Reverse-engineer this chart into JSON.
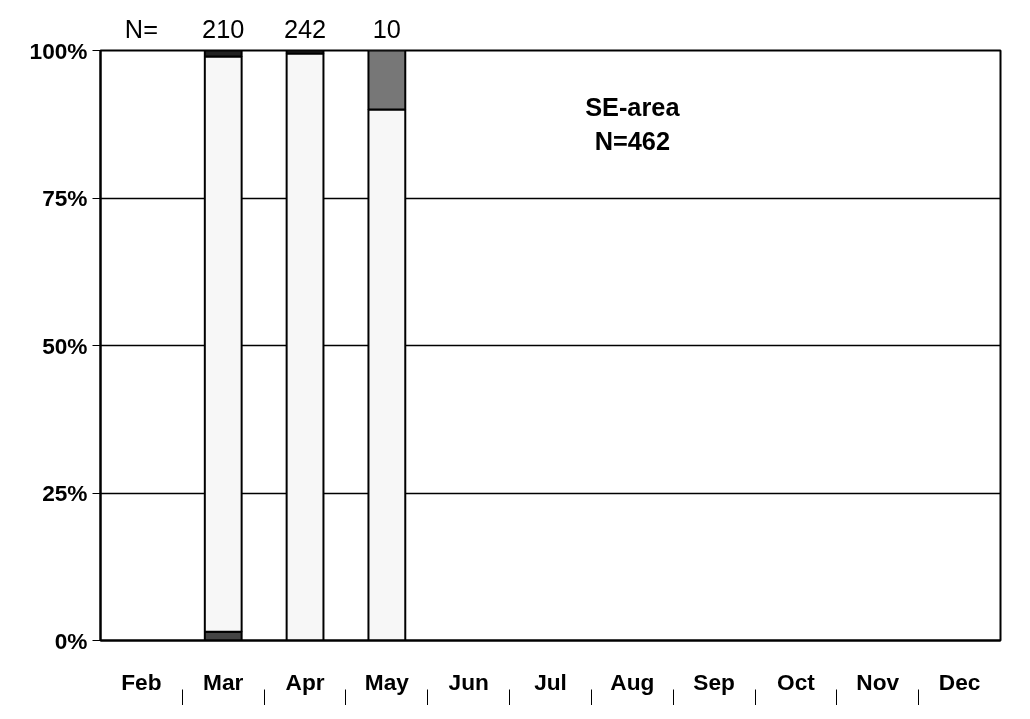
{
  "chart_data": {
    "type": "bar",
    "stacked": true,
    "categories": [
      "Feb",
      "Mar",
      "Apr",
      "May",
      "Jun",
      "Jul",
      "Aug",
      "Sep",
      "Oct",
      "Nov",
      "Dec"
    ],
    "series": [
      {
        "color": "#444444",
        "values": [
          0,
          1.5,
          0,
          0,
          0,
          0,
          0,
          0,
          0,
          0,
          0
        ]
      },
      {
        "color": "#f7f7f7",
        "values": [
          0,
          97.5,
          99.5,
          90,
          0,
          0,
          0,
          0,
          0,
          0,
          0
        ]
      },
      {
        "color": "#222222",
        "values": [
          0,
          1,
          0.5,
          0,
          0,
          0,
          0,
          0,
          0,
          0,
          0
        ]
      },
      {
        "color": "#777777",
        "values": [
          0,
          0,
          0,
          10,
          0,
          0,
          0,
          0,
          0,
          0,
          0
        ]
      }
    ],
    "ylim": [
      0,
      100
    ],
    "yticks": [
      {
        "value": 0,
        "label": "0%"
      },
      {
        "value": 25,
        "label": "25%"
      },
      {
        "value": 50,
        "label": "50%"
      },
      {
        "value": 75,
        "label": "75%"
      },
      {
        "value": 100,
        "label": "100%"
      }
    ],
    "grid": "y",
    "annotations": [
      "N=",
      "210",
      "242",
      "10",
      "SE-area\nN=462"
    ]
  }
}
